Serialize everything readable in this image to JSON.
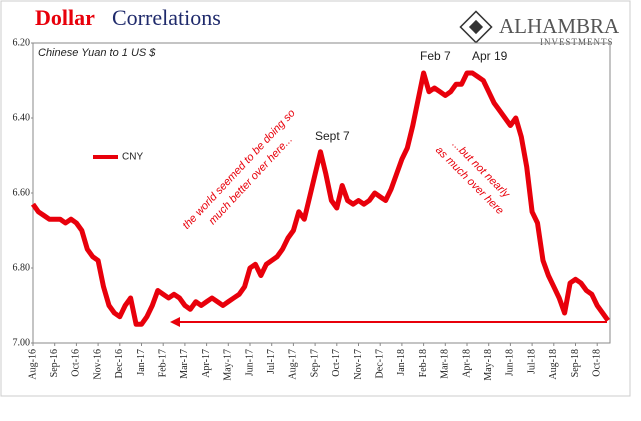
{
  "chart_data": {
    "type": "line",
    "title": [
      "Dollar",
      "Correlations"
    ],
    "logo": {
      "name": "ALHAMBRA",
      "subtitle": "INVESTMENTS"
    },
    "subtitle": "Chinese Yuan to 1 US $",
    "annotations": {
      "sept": "Sept 7",
      "feb": "Feb 7",
      "apr": "Apr 19",
      "left_note": [
        "the world seemed to be doing so",
        "much better over here..."
      ],
      "right_note": [
        "...but not nearly",
        "as much over here"
      ]
    },
    "ylim": [
      6.2,
      7.0
    ],
    "y_inverted": true,
    "yticks": [
      {
        "value": 6.2,
        "label": "6.20"
      },
      {
        "value": 6.4,
        "label": "6.40"
      },
      {
        "value": 6.6,
        "label": "6.60"
      },
      {
        "value": 6.8,
        "label": "6.80"
      },
      {
        "value": 7.0,
        "label": "7.00"
      }
    ],
    "grid": false,
    "legend": "upper left",
    "categories": [
      "Aug-16",
      null,
      null,
      null,
      "Sep-16",
      null,
      null,
      null,
      "Oct-16",
      null,
      null,
      null,
      "Nov-16",
      null,
      null,
      null,
      "Dec-16",
      null,
      null,
      null,
      "Jan-17",
      null,
      null,
      null,
      "Feb-17",
      null,
      null,
      null,
      "Mar-17",
      null,
      null,
      null,
      "Apr-17",
      null,
      null,
      null,
      "May-17",
      null,
      null,
      null,
      "Jun-17",
      null,
      null,
      null,
      "Jul-17",
      null,
      null,
      null,
      "Aug-17",
      null,
      null,
      null,
      "Sep-17",
      null,
      null,
      null,
      "Oct-17",
      null,
      null,
      null,
      "Nov-17",
      null,
      null,
      null,
      "Dec-17",
      null,
      null,
      null,
      "Jan-18",
      null,
      null,
      null,
      "Feb-18",
      null,
      null,
      null,
      "Mar-18",
      null,
      null,
      null,
      "Apr-18",
      null,
      null,
      null,
      "May-18",
      null,
      null,
      null,
      "Jun-18",
      null,
      null,
      null,
      "Jul-18",
      null,
      null,
      null,
      "Aug-18",
      null,
      null,
      null,
      "Sep-18",
      null,
      null,
      null,
      "Oct-18",
      null,
      null
    ],
    "series": [
      {
        "name": "CNY",
        "color": "#e8000b",
        "values": [
          6.63,
          6.65,
          6.66,
          6.67,
          6.67,
          6.67,
          6.68,
          6.67,
          6.68,
          6.7,
          6.75,
          6.77,
          6.78,
          6.85,
          6.9,
          6.92,
          6.93,
          6.9,
          6.88,
          6.95,
          6.95,
          6.93,
          6.9,
          6.86,
          6.87,
          6.88,
          6.87,
          6.88,
          6.9,
          6.91,
          6.89,
          6.9,
          6.89,
          6.88,
          6.89,
          6.9,
          6.89,
          6.88,
          6.87,
          6.85,
          6.8,
          6.79,
          6.82,
          6.79,
          6.78,
          6.77,
          6.75,
          6.72,
          6.7,
          6.65,
          6.67,
          6.61,
          6.55,
          6.49,
          6.55,
          6.62,
          6.64,
          6.58,
          6.62,
          6.63,
          6.62,
          6.63,
          6.62,
          6.6,
          6.61,
          6.62,
          6.59,
          6.55,
          6.51,
          6.48,
          6.42,
          6.35,
          6.28,
          6.33,
          6.32,
          6.33,
          6.34,
          6.33,
          6.31,
          6.31,
          6.28,
          6.28,
          6.29,
          6.3,
          6.33,
          6.36,
          6.38,
          6.4,
          6.42,
          6.4,
          6.45,
          6.53,
          6.65,
          6.68,
          6.78,
          6.82,
          6.85,
          6.88,
          6.92,
          6.84,
          6.83,
          6.84,
          6.86,
          6.87,
          6.9,
          6.92,
          6.94
        ]
      }
    ]
  }
}
